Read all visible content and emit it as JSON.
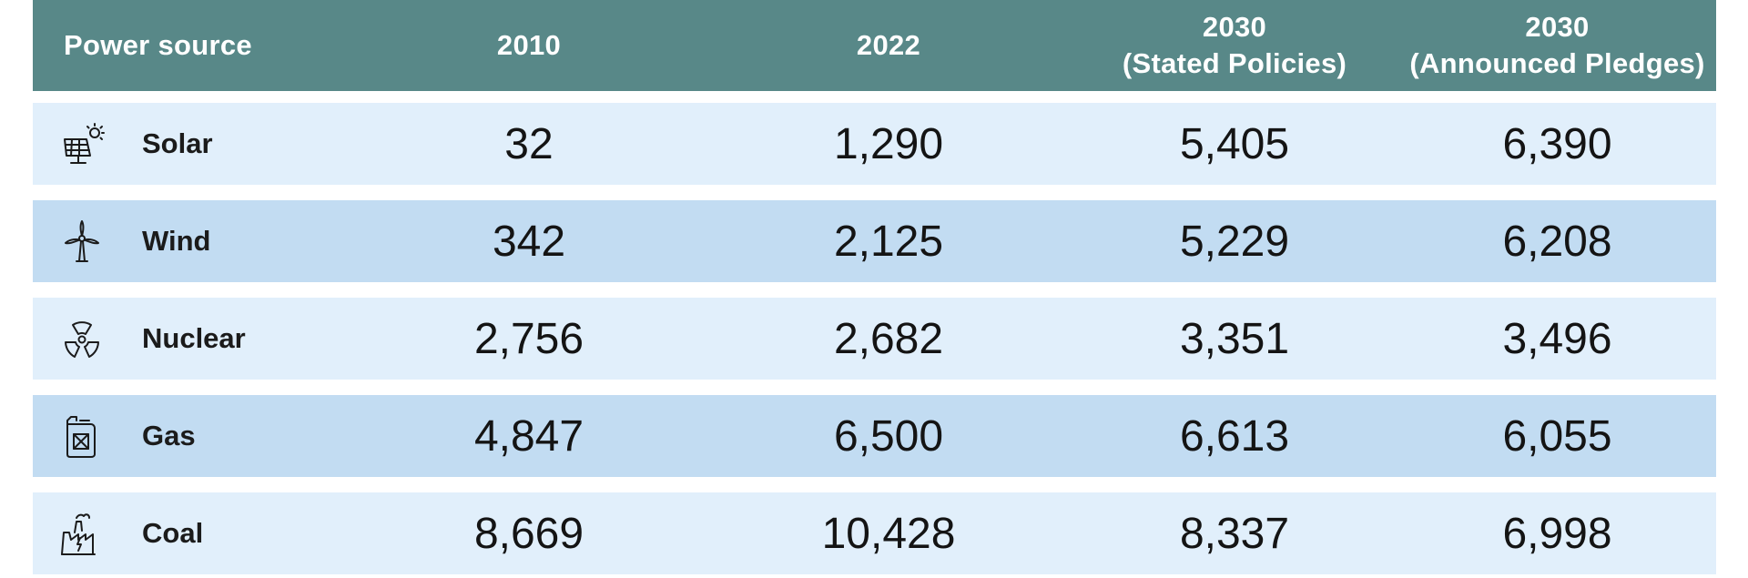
{
  "chart_data": {
    "type": "table",
    "columns": [
      "Power source",
      "2010",
      "2022",
      "2030\n(Stated Policies)",
      "2030\n(Announced Pledges)"
    ],
    "header": {
      "col0": "Power source",
      "col1": "2010",
      "col2": "2022",
      "col3_line1": "2030",
      "col3_line2": "(Stated Policies)",
      "col4_line1": "2030",
      "col4_line2": "(Announced Pledges)"
    },
    "rows": [
      {
        "label": "Solar",
        "icon": "solar-panel-icon",
        "values": [
          "32",
          "1,290",
          "5,405",
          "6,390"
        ]
      },
      {
        "label": "Wind",
        "icon": "wind-turbine-icon",
        "values": [
          "342",
          "2,125",
          "5,229",
          "6,208"
        ]
      },
      {
        "label": "Nuclear",
        "icon": "radiation-icon",
        "values": [
          "2,756",
          "2,682",
          "3,351",
          "3,496"
        ]
      },
      {
        "label": "Gas",
        "icon": "jerrycan-icon",
        "values": [
          "4,847",
          "6,500",
          "6,613",
          "6,055"
        ]
      },
      {
        "label": "Coal",
        "icon": "factory-icon",
        "values": [
          "8,669",
          "10,428",
          "8,337",
          "6,998"
        ]
      }
    ]
  },
  "colors": {
    "header_bg": "#588888",
    "row_light": "#e1effb",
    "row_dark": "#c2dcf2"
  }
}
